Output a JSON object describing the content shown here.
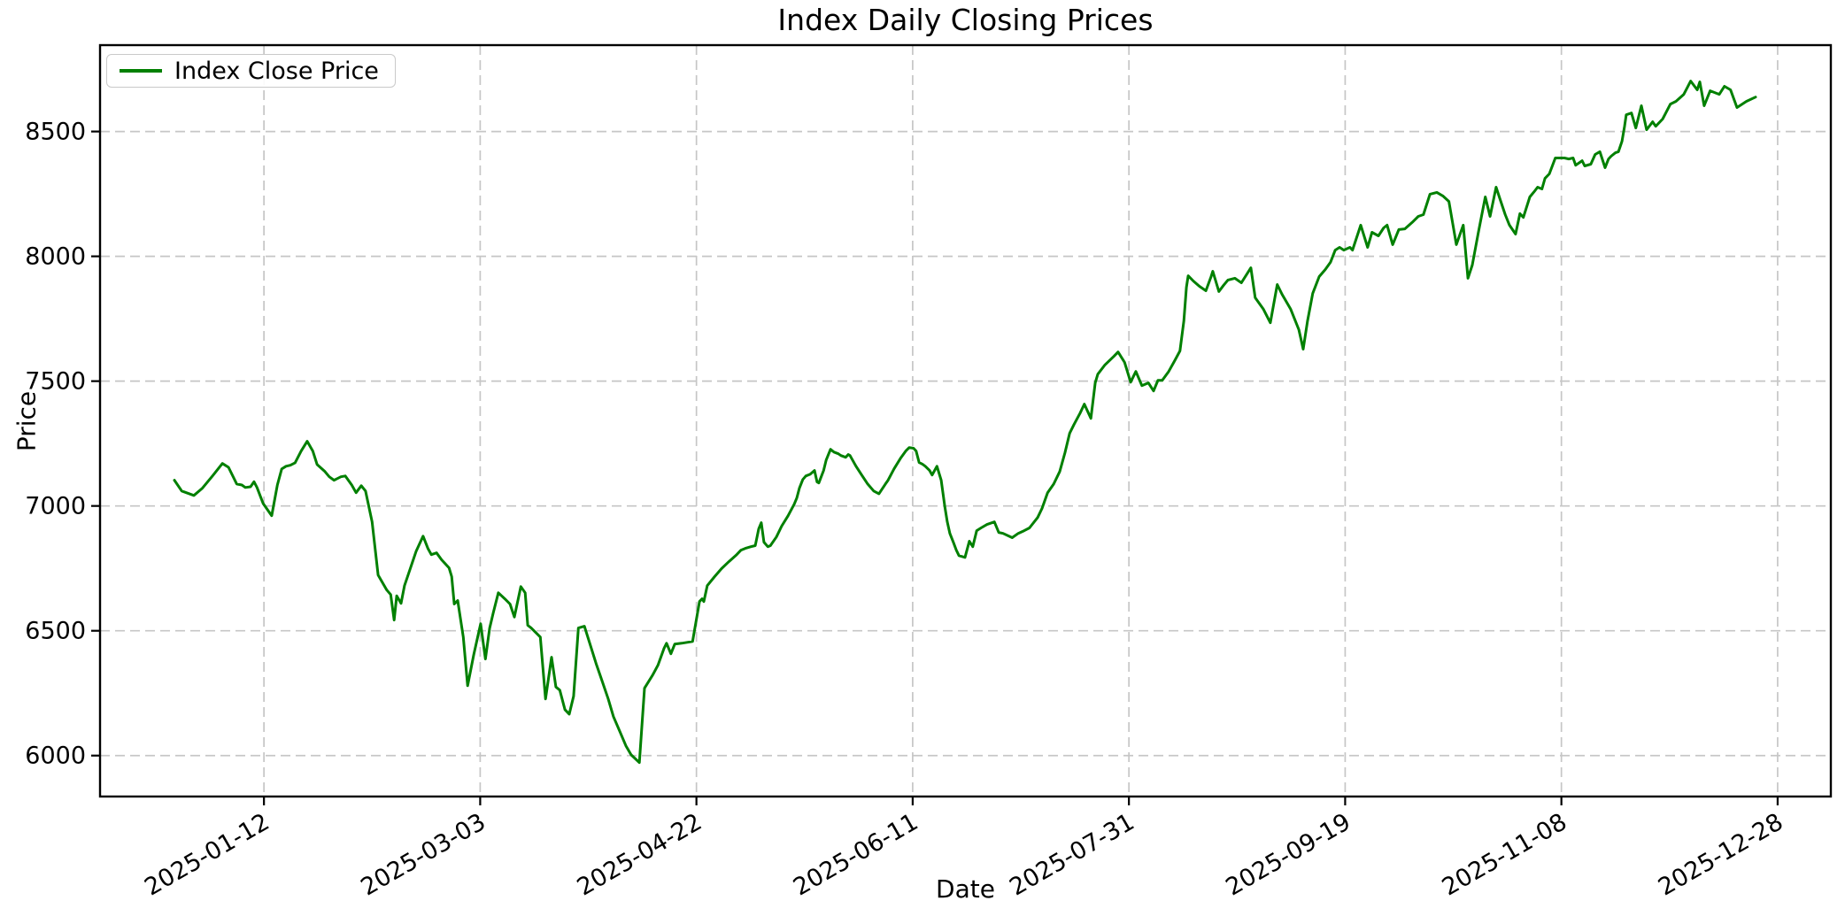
{
  "chart_data": {
    "type": "line",
    "title": "Index Daily Closing Prices",
    "xlabel": "Date",
    "ylabel": "Price",
    "legend_label": "Index Close Price",
    "legend_position": "upper left",
    "grid": true,
    "grid_style": "dashed",
    "line_color": "#008000",
    "grid_color": "#c6c6c6",
    "x_unit": "days relative to first x tick (2025-01-12 = 0); points estimated from plot",
    "x_tick_labels": [
      "2025-01-12",
      "2025-03-03",
      "2025-04-22",
      "2025-06-11",
      "2025-07-31",
      "2025-09-19",
      "2025-11-08",
      "2025-12-28"
    ],
    "x_tick_day_offsets": [
      0,
      50,
      100,
      150,
      200,
      250,
      300,
      350
    ],
    "y_ticks": [
      6000,
      6500,
      7000,
      7500,
      8000,
      8500
    ],
    "xlim": [
      -37.9,
      362.3
    ],
    "ylim": [
      5836,
      8846
    ],
    "points": [
      [
        -20.7,
        7103
      ],
      [
        -19,
        7060
      ],
      [
        -16.2,
        7042
      ],
      [
        -14.3,
        7070
      ],
      [
        -11.9,
        7120
      ],
      [
        -9.6,
        7170
      ],
      [
        -8.2,
        7155
      ],
      [
        -6.3,
        7088
      ],
      [
        -5.1,
        7084
      ],
      [
        -4.3,
        7074
      ],
      [
        -3.1,
        7077
      ],
      [
        -2.3,
        7097
      ],
      [
        -1.6,
        7074
      ],
      [
        -0.2,
        7010
      ],
      [
        1.8,
        6961
      ],
      [
        3.1,
        7084
      ],
      [
        4.1,
        7148
      ],
      [
        5.1,
        7159
      ],
      [
        6.1,
        7163
      ],
      [
        7.2,
        7173
      ],
      [
        8.6,
        7220
      ],
      [
        10,
        7259
      ],
      [
        11.3,
        7220
      ],
      [
        12.3,
        7166
      ],
      [
        14.1,
        7138
      ],
      [
        15.1,
        7117
      ],
      [
        16.2,
        7103
      ],
      [
        17.8,
        7117
      ],
      [
        18.8,
        7120
      ],
      [
        20.3,
        7084
      ],
      [
        21.3,
        7053
      ],
      [
        22.5,
        7081
      ],
      [
        23.5,
        7060
      ],
      [
        25,
        6936
      ],
      [
        26.4,
        6723
      ],
      [
        28.4,
        6663
      ],
      [
        29.3,
        6645
      ],
      [
        30.1,
        6543
      ],
      [
        30.7,
        6640
      ],
      [
        31.7,
        6610
      ],
      [
        32.5,
        6681
      ],
      [
        33.8,
        6748
      ],
      [
        35.2,
        6819
      ],
      [
        36.8,
        6879
      ],
      [
        37.9,
        6830
      ],
      [
        38.7,
        6805
      ],
      [
        39.9,
        6812
      ],
      [
        41.1,
        6784
      ],
      [
        42.8,
        6752
      ],
      [
        43.4,
        6717
      ],
      [
        44,
        6607
      ],
      [
        44.8,
        6621
      ],
      [
        46.1,
        6475
      ],
      [
        47.1,
        6280
      ],
      [
        48.5,
        6404
      ],
      [
        50.1,
        6528
      ],
      [
        51.2,
        6387
      ],
      [
        52.2,
        6511
      ],
      [
        53,
        6571
      ],
      [
        54.2,
        6652
      ],
      [
        55.7,
        6628
      ],
      [
        56.9,
        6607
      ],
      [
        57.9,
        6555
      ],
      [
        59.4,
        6677
      ],
      [
        60.4,
        6652
      ],
      [
        61,
        6522
      ],
      [
        61.8,
        6511
      ],
      [
        63.9,
        6475
      ],
      [
        65.1,
        6227
      ],
      [
        66.5,
        6394
      ],
      [
        67.5,
        6275
      ],
      [
        68.4,
        6262
      ],
      [
        69.6,
        6184
      ],
      [
        70.6,
        6166
      ],
      [
        71.6,
        6238
      ],
      [
        72.7,
        6511
      ],
      [
        74.1,
        6518
      ],
      [
        75.5,
        6440
      ],
      [
        76.8,
        6369
      ],
      [
        78.2,
        6298
      ],
      [
        79.6,
        6227
      ],
      [
        80.8,
        6156
      ],
      [
        82.3,
        6096
      ],
      [
        83.7,
        6039
      ],
      [
        84.9,
        6003
      ],
      [
        86.8,
        5972
      ],
      [
        88,
        6270
      ],
      [
        89.9,
        6323
      ],
      [
        91.1,
        6362
      ],
      [
        92.5,
        6429
      ],
      [
        93.1,
        6450
      ],
      [
        94.1,
        6408
      ],
      [
        95,
        6447
      ],
      [
        96.6,
        6450
      ],
      [
        99.1,
        6457
      ],
      [
        100.7,
        6617
      ],
      [
        101.3,
        6628
      ],
      [
        101.7,
        6617
      ],
      [
        102.5,
        6681
      ],
      [
        104.2,
        6717
      ],
      [
        105.8,
        6749
      ],
      [
        107.5,
        6777
      ],
      [
        109.3,
        6805
      ],
      [
        110.3,
        6823
      ],
      [
        111.3,
        6830
      ],
      [
        112.6,
        6837
      ],
      [
        113.6,
        6841
      ],
      [
        114.4,
        6908
      ],
      [
        115,
        6933
      ],
      [
        115.6,
        6855
      ],
      [
        116.5,
        6837
      ],
      [
        117.1,
        6841
      ],
      [
        118.5,
        6876
      ],
      [
        119.7,
        6919
      ],
      [
        121.2,
        6961
      ],
      [
        122.6,
        7007
      ],
      [
        123.2,
        7032
      ],
      [
        123.8,
        7071
      ],
      [
        124.6,
        7106
      ],
      [
        125.3,
        7120
      ],
      [
        126.3,
        7127
      ],
      [
        127.3,
        7142
      ],
      [
        127.9,
        7096
      ],
      [
        128.3,
        7092
      ],
      [
        129.4,
        7142
      ],
      [
        130,
        7184
      ],
      [
        131,
        7227
      ],
      [
        131.8,
        7216
      ],
      [
        132.8,
        7209
      ],
      [
        133.4,
        7202
      ],
      [
        134.5,
        7195
      ],
      [
        135.1,
        7206
      ],
      [
        135.5,
        7202
      ],
      [
        136.9,
        7159
      ],
      [
        138.2,
        7124
      ],
      [
        139.6,
        7088
      ],
      [
        141,
        7060
      ],
      [
        142.2,
        7049
      ],
      [
        143.7,
        7088
      ],
      [
        144.3,
        7103
      ],
      [
        145.7,
        7149
      ],
      [
        147.2,
        7191
      ],
      [
        148.4,
        7220
      ],
      [
        149.2,
        7234
      ],
      [
        150.2,
        7231
      ],
      [
        150.8,
        7220
      ],
      [
        151.5,
        7174
      ],
      [
        152.3,
        7167
      ],
      [
        152.9,
        7159
      ],
      [
        153.9,
        7142
      ],
      [
        154.5,
        7124
      ],
      [
        155.6,
        7159
      ],
      [
        156.6,
        7103
      ],
      [
        157.4,
        7000
      ],
      [
        158,
        6936
      ],
      [
        158.6,
        6890
      ],
      [
        159.4,
        6855
      ],
      [
        160.1,
        6823
      ],
      [
        160.7,
        6801
      ],
      [
        162.1,
        6794
      ],
      [
        163.1,
        6859
      ],
      [
        163.9,
        6837
      ],
      [
        164.8,
        6901
      ],
      [
        165.8,
        6912
      ],
      [
        167.2,
        6926
      ],
      [
        168.9,
        6936
      ],
      [
        169.9,
        6894
      ],
      [
        170.9,
        6890
      ],
      [
        173,
        6873
      ],
      [
        174.4,
        6890
      ],
      [
        175.8,
        6901
      ],
      [
        177,
        6912
      ],
      [
        178.9,
        6954
      ],
      [
        179.9,
        6990
      ],
      [
        181.2,
        7053
      ],
      [
        182.6,
        7088
      ],
      [
        184,
        7138
      ],
      [
        185.2,
        7213
      ],
      [
        186.3,
        7291
      ],
      [
        187.3,
        7326
      ],
      [
        188.7,
        7372
      ],
      [
        189.7,
        7408
      ],
      [
        191.2,
        7351
      ],
      [
        192.2,
        7493
      ],
      [
        192.8,
        7528
      ],
      [
        194.4,
        7564
      ],
      [
        196.5,
        7599
      ],
      [
        197.5,
        7617
      ],
      [
        199,
        7575
      ],
      [
        200.4,
        7496
      ],
      [
        201.6,
        7539
      ],
      [
        203,
        7482
      ],
      [
        204.5,
        7493
      ],
      [
        205.7,
        7461
      ],
      [
        206.7,
        7503
      ],
      [
        207.7,
        7503
      ],
      [
        209.2,
        7539
      ],
      [
        210.6,
        7582
      ],
      [
        211.8,
        7621
      ],
      [
        212.7,
        7741
      ],
      [
        213.3,
        7876
      ],
      [
        213.7,
        7922
      ],
      [
        214.9,
        7901
      ],
      [
        216.3,
        7880
      ],
      [
        217.8,
        7862
      ],
      [
        219,
        7919
      ],
      [
        219.4,
        7940
      ],
      [
        220.8,
        7859
      ],
      [
        221.9,
        7884
      ],
      [
        222.9,
        7905
      ],
      [
        224.5,
        7912
      ],
      [
        226,
        7894
      ],
      [
        228.2,
        7954
      ],
      [
        229.2,
        7834
      ],
      [
        231.1,
        7788
      ],
      [
        232.7,
        7734
      ],
      [
        234.3,
        7887
      ],
      [
        235.4,
        7848
      ],
      [
        237.4,
        7788
      ],
      [
        239.3,
        7706
      ],
      [
        240.3,
        7628
      ],
      [
        241.3,
        7741
      ],
      [
        242.5,
        7852
      ],
      [
        244,
        7919
      ],
      [
        245.4,
        7947
      ],
      [
        246.6,
        7976
      ],
      [
        247.7,
        8025
      ],
      [
        248.7,
        8036
      ],
      [
        249.7,
        8025
      ],
      [
        251.1,
        8036
      ],
      [
        251.7,
        8025
      ],
      [
        253.6,
        8125
      ],
      [
        255.2,
        8036
      ],
      [
        256.2,
        8096
      ],
      [
        257.7,
        8082
      ],
      [
        258.9,
        8114
      ],
      [
        259.7,
        8125
      ],
      [
        261,
        8047
      ],
      [
        262.4,
        8107
      ],
      [
        263.8,
        8110
      ],
      [
        265.5,
        8136
      ],
      [
        266.9,
        8160
      ],
      [
        268.1,
        8167
      ],
      [
        269.6,
        8249
      ],
      [
        271.2,
        8256
      ],
      [
        272.6,
        8242
      ],
      [
        274,
        8220
      ],
      [
        275.7,
        8047
      ],
      [
        277.3,
        8125
      ],
      [
        278.4,
        7912
      ],
      [
        279.4,
        7965
      ],
      [
        280.8,
        8096
      ],
      [
        282.4,
        8238
      ],
      [
        283.5,
        8160
      ],
      [
        284.9,
        8277
      ],
      [
        285.9,
        8224
      ],
      [
        287,
        8167
      ],
      [
        288,
        8125
      ],
      [
        289.4,
        8089
      ],
      [
        290.4,
        8171
      ],
      [
        291.2,
        8156
      ],
      [
        292.7,
        8238
      ],
      [
        293.7,
        8259
      ],
      [
        294.5,
        8277
      ],
      [
        295.5,
        8270
      ],
      [
        296.2,
        8312
      ],
      [
        297.2,
        8330
      ],
      [
        298.6,
        8394
      ],
      [
        300.7,
        8394
      ],
      [
        301.7,
        8390
      ],
      [
        302.7,
        8394
      ],
      [
        303.3,
        8365
      ],
      [
        304.8,
        8383
      ],
      [
        305.4,
        8362
      ],
      [
        306.8,
        8369
      ],
      [
        307.8,
        8408
      ],
      [
        308.9,
        8419
      ],
      [
        310.1,
        8355
      ],
      [
        310.9,
        8390
      ],
      [
        311.5,
        8401
      ],
      [
        312.5,
        8415
      ],
      [
        313.2,
        8419
      ],
      [
        314,
        8461
      ],
      [
        314.6,
        8521
      ],
      [
        315,
        8567
      ],
      [
        316.2,
        8574
      ],
      [
        317.2,
        8514
      ],
      [
        318.5,
        8603
      ],
      [
        319.7,
        8507
      ],
      [
        321.1,
        8539
      ],
      [
        321.8,
        8521
      ],
      [
        323.4,
        8550
      ],
      [
        325.2,
        8610
      ],
      [
        326.5,
        8621
      ],
      [
        328.3,
        8649
      ],
      [
        329.9,
        8702
      ],
      [
        331.4,
        8667
      ],
      [
        332,
        8699
      ],
      [
        333,
        8603
      ],
      [
        334.4,
        8663
      ],
      [
        336.5,
        8649
      ],
      [
        337.7,
        8681
      ],
      [
        339.1,
        8667
      ],
      [
        340.6,
        8596
      ],
      [
        342.8,
        8621
      ],
      [
        344.9,
        8638
      ]
    ]
  }
}
